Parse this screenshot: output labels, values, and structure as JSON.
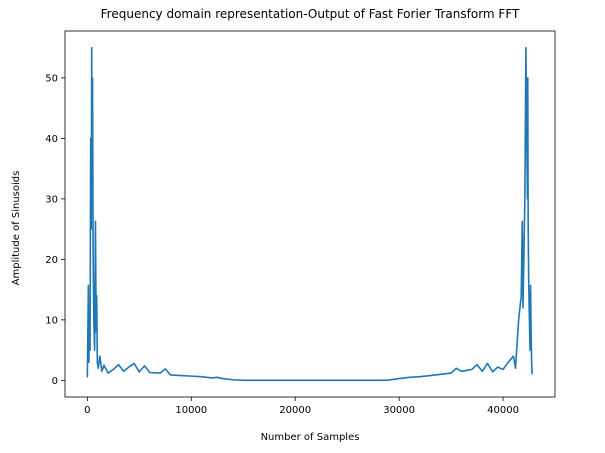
{
  "chart_data": {
    "type": "line",
    "title": "Frequency domain representation-Output of Fast Forier Transform FFT",
    "xlabel": "Number of Samples",
    "ylabel": "Amplitude of Sinusoids",
    "xlim": [
      -2150,
      45000
    ],
    "ylim": [
      -2.75,
      57.75
    ],
    "xticks": [
      0,
      10000,
      20000,
      30000,
      40000
    ],
    "yticks": [
      0,
      10,
      20,
      30,
      40,
      50
    ],
    "grid": false,
    "legend": "none",
    "series": [
      {
        "color": "#1f77b4",
        "x": [
          0,
          100,
          150,
          200,
          260,
          320,
          380,
          420,
          460,
          500,
          560,
          620,
          700,
          780,
          850,
          900,
          960,
          1050,
          1200,
          1400,
          1600,
          2000,
          2500,
          3000,
          3500,
          4000,
          4500,
          5000,
          5500,
          6000,
          7000,
          7500,
          8000,
          9000,
          10000,
          11000,
          12000,
          12500,
          13000,
          14000,
          15000,
          20000,
          25000,
          28000,
          29000,
          30000,
          31000,
          32000,
          33000,
          34000,
          35000,
          35500,
          36000,
          37000,
          37500,
          38000,
          38500,
          39000,
          39500,
          40000,
          40500,
          41000,
          41200,
          41500,
          41750,
          41850,
          41920,
          42000,
          42100,
          42200,
          42280,
          42350,
          42380,
          42420,
          42480,
          42540,
          42600,
          42650,
          42700,
          42750,
          42800
        ],
        "y": [
          0.5,
          15.7,
          3,
          10,
          5,
          40,
          25,
          55,
          30,
          50,
          20,
          10,
          5,
          26.3,
          8,
          14,
          3,
          2,
          4,
          1.5,
          2.5,
          1.2,
          1.8,
          2.6,
          1.5,
          2.2,
          2.8,
          1.4,
          2.4,
          1.3,
          1.2,
          1.9,
          0.9,
          0.8,
          0.7,
          0.6,
          0.4,
          0.5,
          0.3,
          0.1,
          0,
          0,
          0,
          0,
          0.05,
          0.3,
          0.5,
          0.6,
          0.8,
          1.0,
          1.2,
          2,
          1.5,
          1.8,
          2.6,
          1.5,
          2.8,
          1.4,
          2.2,
          1.8,
          3.0,
          4,
          2,
          10,
          14,
          26.3,
          12,
          20,
          30,
          55,
          40,
          30,
          50,
          25,
          15,
          10,
          5,
          15.7,
          8,
          3,
          1
        ]
      }
    ]
  }
}
